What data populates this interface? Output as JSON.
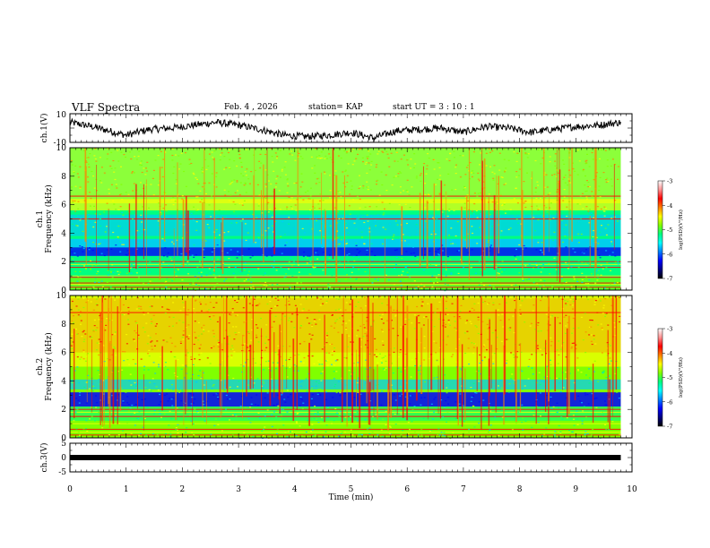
{
  "header": {
    "title": "VLF Spectra",
    "date": "Feb. 4 , 2026",
    "station": "station= KAP",
    "start": "start UT = 3 : 10 : 1"
  },
  "chart_data": [
    {
      "type": "line",
      "name": "ch1-waveform",
      "ylabel": "ch.1(V)",
      "ylim": [
        -10,
        10
      ],
      "ytick_labels": [
        "10",
        "-10"
      ],
      "xlim": [
        0,
        10
      ],
      "x_end": 9.8,
      "segments": [
        {
          "x": 0.0,
          "y": 4
        },
        {
          "x": 0.4,
          "y": 1
        },
        {
          "x": 0.7,
          "y": -2
        },
        {
          "x": 1.0,
          "y": -5
        },
        {
          "x": 1.4,
          "y": -1
        },
        {
          "x": 1.8,
          "y": 0
        },
        {
          "x": 2.2,
          "y": 2
        },
        {
          "x": 2.6,
          "y": 4
        },
        {
          "x": 3.0,
          "y": 2
        },
        {
          "x": 3.4,
          "y": -1
        },
        {
          "x": 3.8,
          "y": -5
        },
        {
          "x": 4.2,
          "y": -6
        },
        {
          "x": 4.6,
          "y": -5
        },
        {
          "x": 5.0,
          "y": -3
        },
        {
          "x": 5.4,
          "y": -7
        },
        {
          "x": 5.8,
          "y": -2
        },
        {
          "x": 6.2,
          "y": -1
        },
        {
          "x": 6.6,
          "y": 0
        },
        {
          "x": 7.0,
          "y": -3
        },
        {
          "x": 7.4,
          "y": 1
        },
        {
          "x": 7.8,
          "y": 0
        },
        {
          "x": 8.2,
          "y": -3
        },
        {
          "x": 8.6,
          "y": -1
        },
        {
          "x": 9.0,
          "y": 1
        },
        {
          "x": 9.4,
          "y": 2
        },
        {
          "x": 9.8,
          "y": 4
        }
      ]
    },
    {
      "type": "heatmap",
      "name": "ch1-spectrogram",
      "ylabel": "ch.1 Frequency (kHz)",
      "ylim": [
        0,
        10
      ],
      "ytick_labels": [
        "0",
        "2",
        "4",
        "6",
        "8",
        "10"
      ],
      "xlim": [
        0,
        10
      ],
      "x_end": 9.8,
      "colorbar": {
        "label": "log(PSD)(V²/Hz)",
        "range": [
          -7,
          -3
        ],
        "tick_labels": [
          "-3",
          "-4",
          "-5",
          "-6",
          "-7"
        ]
      }
    },
    {
      "type": "heatmap",
      "name": "ch2-spectrogram",
      "ylabel": "ch.2 Frequency (kHz)",
      "ylim": [
        0,
        10
      ],
      "ytick_labels": [
        "0",
        "2",
        "4",
        "6",
        "8",
        "10"
      ],
      "xlim": [
        0,
        10
      ],
      "x_end": 9.8,
      "colorbar": {
        "label": "log(PSD)(V²/Hz)",
        "range": [
          -7,
          -3
        ],
        "tick_labels": [
          "-3",
          "-4",
          "-5",
          "-6",
          "-7"
        ]
      }
    },
    {
      "type": "line",
      "name": "ch3-signal",
      "ylabel": "ch.3(V)",
      "ylim": [
        -5,
        5
      ],
      "ytick_labels": [
        "5",
        "0",
        "-5"
      ],
      "xlim": [
        0,
        10
      ],
      "x_end": 9.8,
      "value": 0
    }
  ],
  "xaxis": {
    "label": "Time (min)",
    "tick_labels": [
      "0",
      "1",
      "2",
      "3",
      "4",
      "5",
      "6",
      "7",
      "8",
      "9",
      "10"
    ]
  },
  "colors": {
    "spectrum": [
      "#00008f",
      "#0000ff",
      "#00c8ff",
      "#00ff80",
      "#80ff00",
      "#ffff00",
      "#ff8000",
      "#ff0000"
    ],
    "trace": "#000000"
  }
}
